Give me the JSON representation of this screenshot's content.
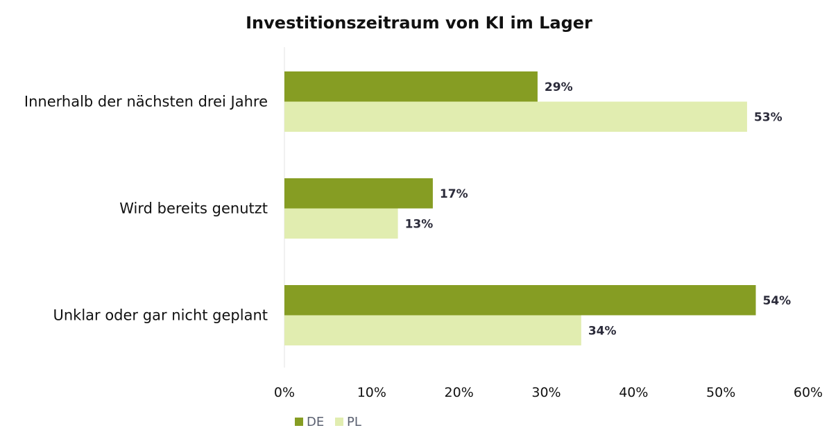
{
  "chart_data": {
    "type": "bar",
    "orientation": "horizontal",
    "title": "Investitionszeitraum von KI im Lager",
    "categories": [
      "Innerhalb der nächsten drei Jahre",
      "Wird bereits genutzt",
      "Unklar oder gar nicht geplant"
    ],
    "series": [
      {
        "name": "DE",
        "values": [
          29,
          17,
          54
        ],
        "labels": [
          "29%",
          "17%",
          "54%"
        ],
        "color": "#869d23"
      },
      {
        "name": "PL",
        "values": [
          53,
          13,
          34
        ],
        "labels": [
          "53%",
          "13%",
          "34%"
        ],
        "color": "#e1edb0"
      }
    ],
    "xlim": [
      0,
      60
    ],
    "xticks": [
      "0%",
      "10%",
      "20%",
      "30%",
      "40%",
      "50%",
      "60%"
    ],
    "xlabel": "",
    "ylabel": "",
    "grid": false,
    "legend_position": "bottom"
  }
}
